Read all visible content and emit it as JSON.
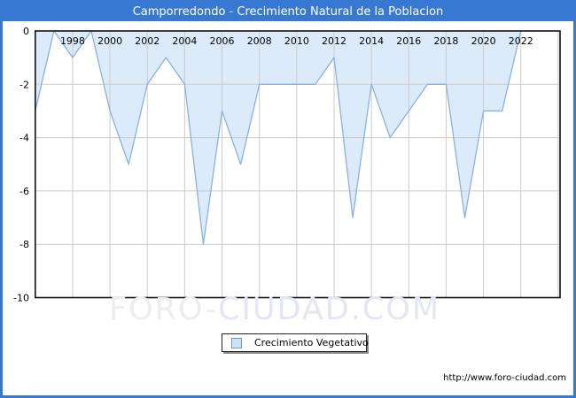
{
  "title": "Camporredondo - Crecimiento Natural de la Poblacion",
  "legend": {
    "label": "Crecimiento Vegetativo"
  },
  "watermark": {
    "part1": "FORO-",
    "part2": "CIUDAD.COM"
  },
  "footer": {
    "url": "http://www.foro-ciudad.com"
  },
  "colors": {
    "accent": "#3778d3",
    "title_text": "#ffffff",
    "plot_border": "#111111",
    "grid": "#cbcbcb",
    "tick_text": "#000000",
    "area_fill": "#dcebfa",
    "area_line": "#8ab1e2",
    "legend_swatch_fill": "#cfe2f6",
    "legend_swatch_border": "#7099c9",
    "watermark1": "#ededed",
    "watermark2": "#e4e6f5"
  },
  "chart_data": {
    "type": "area",
    "title": "Camporredondo - Crecimiento Natural de la Poblacion",
    "series_name": "Crecimiento Vegetativo",
    "x": [
      1996,
      1997,
      1998,
      1999,
      2000,
      2001,
      2002,
      2003,
      2004,
      2005,
      2006,
      2007,
      2008,
      2009,
      2010,
      2011,
      2012,
      2013,
      2014,
      2015,
      2016,
      2017,
      2018,
      2019,
      2020,
      2021,
      2022
    ],
    "values": [
      -3,
      0,
      -1,
      0,
      -3,
      -5,
      -2,
      -1,
      -2,
      -8,
      -3,
      -5,
      -2,
      -2,
      -2,
      -2,
      -1,
      -7,
      -2,
      -4,
      -3,
      -2,
      -2,
      -7,
      -3,
      -3,
      0
    ],
    "xlabel": "",
    "ylabel": "",
    "xlim": [
      1996,
      2024.1
    ],
    "ylim": [
      -10,
      0
    ],
    "x_tick_labels": [
      1998,
      2000,
      2002,
      2004,
      2006,
      2008,
      2010,
      2012,
      2014,
      2016,
      2018,
      2020,
      2022
    ],
    "x_grid_years": [
      1998,
      2000,
      2002,
      2004,
      2006,
      2008,
      2010,
      2012,
      2014,
      2016,
      2018,
      2020,
      2022,
      2024
    ],
    "y_ticks": [
      0,
      -2,
      -4,
      -6,
      -8,
      -10
    ],
    "grid": true,
    "legend_position": "bottom",
    "x_labels_inside_top": true
  }
}
